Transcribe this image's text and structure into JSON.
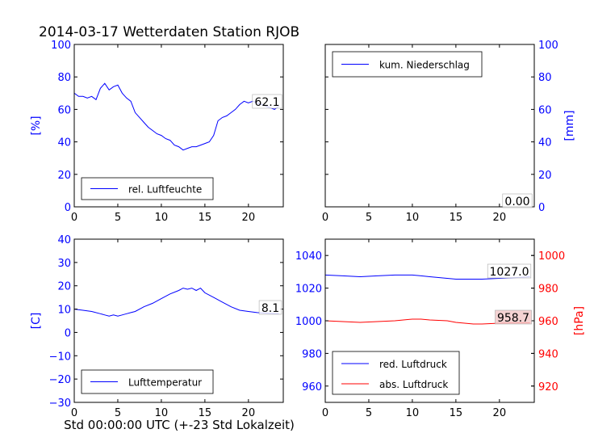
{
  "title": "2014-03-17 Wetterdaten Station RJOB",
  "xlabel": "Std 00:00:00 UTC (+-23 Std Lokalzeit)",
  "colors": {
    "blue": "#0000ff",
    "red": "#ff0000",
    "black": "#000000"
  },
  "chart_data": [
    {
      "id": "humidity",
      "type": "line",
      "xlim": [
        0,
        24
      ],
      "ylim": [
        0,
        100
      ],
      "xticks": [
        0,
        5,
        10,
        15,
        20
      ],
      "yticks": [
        0,
        20,
        40,
        60,
        80,
        100
      ],
      "ylabel": "[%]",
      "ylabel_color": "#0000ff",
      "legend": "bottom-left",
      "series": [
        {
          "name": "rel. Luftfeuchte",
          "color": "#0000ff",
          "x": [
            0,
            0.5,
            1,
            1.5,
            2,
            2.5,
            3,
            3.5,
            4,
            4.5,
            5,
            5.5,
            6,
            6.5,
            7,
            7.5,
            8,
            8.5,
            9,
            9.5,
            10,
            10.5,
            11,
            11.5,
            12,
            12.5,
            13,
            13.5,
            14,
            14.5,
            15,
            15.5,
            16,
            16.5,
            17,
            17.5,
            18,
            18.5,
            19,
            19.5,
            20,
            20.5,
            21,
            21.5,
            22,
            22.5,
            23,
            23.5
          ],
          "y": [
            70,
            68,
            68,
            67,
            68,
            66,
            73,
            76,
            72,
            74,
            75,
            70,
            67,
            65,
            58,
            55,
            52,
            49,
            47,
            45,
            44,
            42,
            41,
            38,
            37,
            35,
            36,
            37,
            37,
            38,
            39,
            40,
            44,
            53,
            55,
            56,
            58,
            60,
            63,
            65,
            64,
            65,
            64,
            63,
            62,
            61,
            60,
            62
          ]
        }
      ],
      "annotation": "62.1"
    },
    {
      "id": "precipitation",
      "type": "line",
      "xlim": [
        0,
        24
      ],
      "ylim": [
        0,
        100
      ],
      "xticks": [
        0,
        5,
        10,
        15,
        20
      ],
      "yticks": [
        0,
        20,
        40,
        60,
        80,
        100
      ],
      "ylabel": "[mm]",
      "ylabel_color": "#0000ff",
      "yaxis_side": "right",
      "legend": "top-left",
      "series": [
        {
          "name": "kum. Niederschlag",
          "color": "#0000ff",
          "x": [
            0,
            23.5
          ],
          "y": [
            0,
            0
          ]
        }
      ],
      "annotation": "0.00"
    },
    {
      "id": "temperature",
      "type": "line",
      "xlim": [
        0,
        24
      ],
      "ylim": [
        -30,
        40
      ],
      "xticks": [
        0,
        5,
        10,
        15,
        20
      ],
      "yticks": [
        -30,
        -20,
        -10,
        0,
        10,
        20,
        30,
        40
      ],
      "ylabel": "[C]",
      "ylabel_color": "#0000ff",
      "legend": "bottom-left",
      "series": [
        {
          "name": "Lufttemperatur",
          "color": "#0000ff",
          "x": [
            0,
            1,
            2,
            3,
            3.5,
            4,
            4.5,
            5,
            5.5,
            6,
            6.5,
            7,
            8,
            9,
            10,
            11,
            12,
            12.5,
            13,
            13.5,
            14,
            14.5,
            15,
            16,
            17,
            18,
            19,
            20,
            21,
            22,
            23,
            23.5
          ],
          "y": [
            10,
            9.5,
            9,
            8,
            7.5,
            7,
            7.5,
            7,
            7.5,
            8,
            8.5,
            9,
            11,
            12.5,
            14.5,
            16.5,
            18,
            19,
            18.5,
            19,
            18,
            19,
            17,
            15,
            13,
            11,
            9.5,
            9,
            8.5,
            8.3,
            8.1,
            8.1
          ]
        }
      ],
      "annotation": "8.1"
    },
    {
      "id": "pressure",
      "type": "line",
      "xlim": [
        0,
        24
      ],
      "ylim_left": [
        950,
        1050
      ],
      "yticks_left": [
        960,
        980,
        1000,
        1020,
        1040
      ],
      "ylim_right": [
        910,
        1010
      ],
      "yticks_right": [
        920,
        940,
        960,
        980,
        1000
      ],
      "ylabel_right": "[hPa]",
      "ylabel_right_color": "#ff0000",
      "xticks": [
        0,
        5,
        10,
        15,
        20
      ],
      "legend": "bottom-left",
      "series": [
        {
          "name": "red. Luftdruck",
          "color": "#0000ff",
          "axis": "left",
          "x": [
            0,
            2,
            4,
            6,
            8,
            10,
            11,
            12,
            14,
            15,
            16,
            18,
            20,
            22,
            23.5
          ],
          "y": [
            1028,
            1027.5,
            1027,
            1027.5,
            1028,
            1028,
            1027.5,
            1027,
            1026,
            1025.5,
            1025.5,
            1025.5,
            1026,
            1026.5,
            1027
          ]
        },
        {
          "name": "abs. Luftdruck",
          "color": "#ff0000",
          "axis": "right",
          "x": [
            0,
            2,
            4,
            6,
            8,
            10,
            11,
            12,
            14,
            15,
            16,
            17,
            18,
            20,
            22,
            23.5
          ],
          "y": [
            960,
            959.5,
            959,
            959.5,
            960,
            961,
            961,
            960.5,
            960,
            959,
            958.5,
            958,
            958,
            958.5,
            958.7,
            958.7
          ]
        }
      ],
      "annotations": [
        "1027.0",
        "958.7"
      ]
    }
  ]
}
